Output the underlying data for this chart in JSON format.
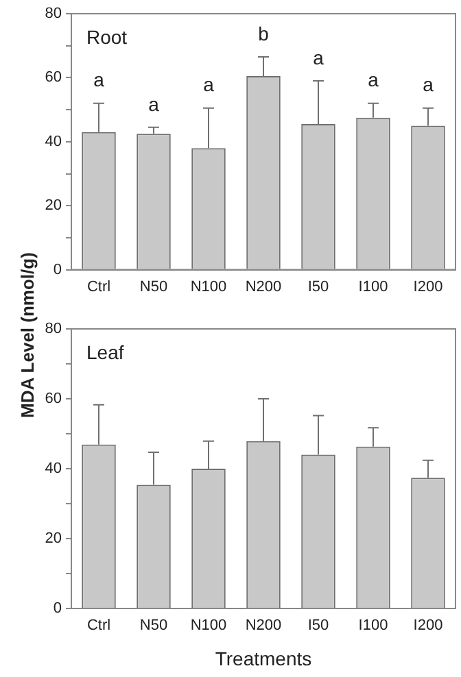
{
  "chart_data": [
    {
      "type": "bar",
      "ylabel": "MDA Level (nmol/g)",
      "categories": [
        "Ctrl",
        "N50",
        "N100",
        "N200",
        "I50",
        "I100",
        "I200"
      ],
      "series": [
        {
          "color": "#c8c8c8",
          "values": [
            43,
            42.5,
            38,
            60.5,
            45.5,
            47.5,
            45
          ],
          "errors": [
            [
              43,
              52
            ],
            [
              42.5,
              44.5
            ],
            [
              38,
              50.5
            ],
            [
              60.5,
              66.5
            ],
            [
              45.5,
              59
            ],
            [
              47.5,
              52
            ],
            [
              45,
              50.5
            ]
          ]
        }
      ],
      "ylim": [
        0,
        80
      ],
      "yticks": [
        0,
        {
          "value": 10,
          "label": null
        },
        20,
        {
          "value": 30,
          "label": null
        },
        40,
        {
          "value": 50,
          "label": null
        },
        60,
        {
          "value": 70,
          "label": null
        },
        80
      ],
      "annotations": [
        "Root",
        {
          "text": "a",
          "x": "Ctrl",
          "y": 52
        },
        {
          "text": "a",
          "x": "N50",
          "y": 44.5
        },
        {
          "text": "a",
          "x": "N100",
          "y": 50.5
        },
        {
          "text": "b",
          "x": "N200",
          "y": 66.5
        },
        {
          "text": "a",
          "x": "I50",
          "y": 59
        },
        {
          "text": "a",
          "x": "I100",
          "y": 52
        },
        {
          "text": "a",
          "x": "I200",
          "y": 50.5
        }
      ],
      "grid": false,
      "legend": false
    },
    {
      "type": "bar",
      "xlabel": "Treatments",
      "categories": [
        "Ctrl",
        "N50",
        "N100",
        "N200",
        "I50",
        "I100",
        "I200"
      ],
      "series": [
        {
          "color": "#c8c8c8",
          "values": [
            46.9,
            35.4,
            40,
            47.9,
            44,
            46.3,
            37.4
          ],
          "errors": [
            [
              46.9,
              58.3
            ],
            [
              35.4,
              44.7
            ],
            [
              40,
              47.9
            ],
            [
              47.9,
              60
            ],
            [
              44,
              55.2
            ],
            [
              46.3,
              51.7
            ],
            [
              37.4,
              42.4
            ]
          ]
        }
      ],
      "ylim": [
        0,
        80
      ],
      "yticks": [
        0,
        {
          "value": 10,
          "label": null
        },
        20,
        {
          "value": 30,
          "label": null
        },
        40,
        {
          "value": 50,
          "label": null
        },
        60,
        {
          "value": 70,
          "label": null
        },
        80
      ],
      "annotations": [
        "Leaf"
      ],
      "grid": false,
      "legend": false
    }
  ]
}
